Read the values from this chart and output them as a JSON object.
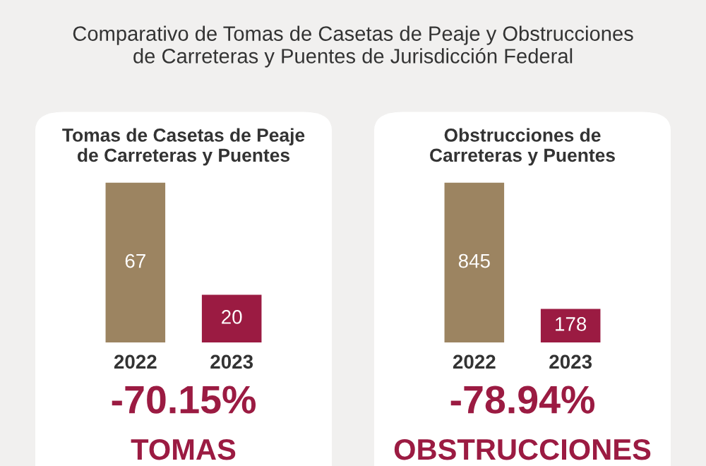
{
  "chart_data": [
    {
      "type": "bar",
      "title": "Comparativo de Tomas de Casetas de Peaje y Obstrucciones\nde Carreteras y Puentes de Jurisdicción Federal",
      "subtitle": "Tomas de Casetas de Peaje\nde Carreteras y Puentes",
      "categories": [
        "2022",
        "2023"
      ],
      "values": [
        67,
        20
      ],
      "colors": [
        "#9c8461",
        "#9b1b42"
      ],
      "data_labels": true,
      "grid": false,
      "legend": false,
      "annotations": [
        "-70.15%",
        "TOMAS"
      ]
    },
    {
      "type": "bar",
      "subtitle": "Obstrucciones de\nCarreteras y Puentes",
      "categories": [
        "2022",
        "2023"
      ],
      "values": [
        845,
        178
      ],
      "colors": [
        "#9c8461",
        "#9b1b42"
      ],
      "data_labels": true,
      "grid": false,
      "legend": false,
      "annotations": [
        "-78.94%",
        "OBSTRUCCIONES"
      ]
    }
  ]
}
